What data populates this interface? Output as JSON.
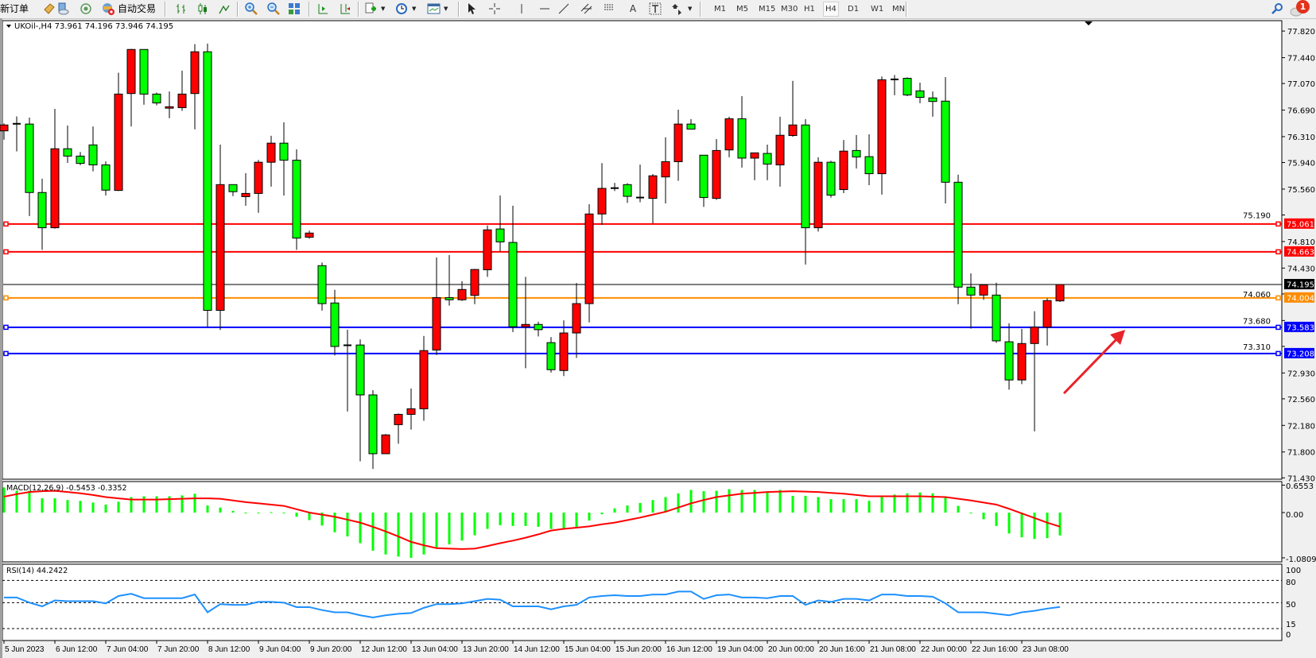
{
  "toolbar": {
    "new_order_label": "新订单",
    "auto_trading_label": "自动交易",
    "timeframes": [
      "M1",
      "M5",
      "M15",
      "M30",
      "H1",
      "H4",
      "D1",
      "W1",
      "MN"
    ],
    "active_timeframe": "H4",
    "notification_count": "1"
  },
  "chart": {
    "header": "UKOil-,H4  73.961 74.196 73.946 74.195",
    "bull_color": "#ff0000",
    "bear_color": "#00ff00",
    "price_ticks": [
      "77.820",
      "77.440",
      "77.070",
      "76.690",
      "76.310",
      "75.940",
      "75.560",
      "75.190",
      "74.810",
      "74.430",
      "74.060",
      "73.680",
      "73.310",
      "72.930",
      "72.560",
      "72.180",
      "71.800",
      "71.430"
    ],
    "bid": {
      "price": 74.195,
      "label": "74.195"
    },
    "hlines": [
      {
        "price": 75.061,
        "label": "75.061",
        "color": "#ff0000"
      },
      {
        "price": 74.663,
        "label": "74.663",
        "color": "#ff0000"
      },
      {
        "price": 74.004,
        "label": "74.004",
        "color": "#ff8c00"
      },
      {
        "price": 73.583,
        "label": "73.583",
        "color": "#0000ff"
      },
      {
        "price": 73.208,
        "label": "73.208",
        "color": "#0000ff"
      }
    ],
    "annotation_arrow_color": "#e8232a",
    "time_axis": [
      {
        "i": 0,
        "label": "5 Jun 2023"
      },
      {
        "i": 4,
        "label": "6 Jun 12:00"
      },
      {
        "i": 8,
        "label": "7 Jun 04:00"
      },
      {
        "i": 12,
        "label": "7 Jun 20:00"
      },
      {
        "i": 16,
        "label": "8 Jun 12:00"
      },
      {
        "i": 20,
        "label": "9 Jun 04:00"
      },
      {
        "i": 24,
        "label": "9 Jun 20:00"
      },
      {
        "i": 28,
        "label": "12 Jun 12:00"
      },
      {
        "i": 32,
        "label": "13 Jun 04:00"
      },
      {
        "i": 36,
        "label": "13 Jun 20:00"
      },
      {
        "i": 40,
        "label": "14 Jun 12:00"
      },
      {
        "i": 44,
        "label": "15 Jun 04:00"
      },
      {
        "i": 48,
        "label": "15 Jun 20:00"
      },
      {
        "i": 52,
        "label": "16 Jun 12:00"
      },
      {
        "i": 56,
        "label": "19 Jun 04:00"
      },
      {
        "i": 60,
        "label": "20 Jun 00:00"
      },
      {
        "i": 64,
        "label": "20 Jun 16:00"
      },
      {
        "i": 68,
        "label": "21 Jun 08:00"
      },
      {
        "i": 72,
        "label": "22 Jun 00:00"
      },
      {
        "i": 76,
        "label": "22 Jun 16:00"
      },
      {
        "i": 80,
        "label": "23 Jun 08:00"
      }
    ]
  },
  "chart_data": [
    {
      "type": "candlestick",
      "symbol": "UKOil-",
      "timeframe": "H4",
      "ylim": [
        71.43,
        77.82
      ],
      "ohlc": [
        [
          76.393,
          76.498,
          76.267,
          76.477
        ],
        [
          76.494,
          76.599,
          76.099,
          76.494
        ],
        [
          76.49,
          76.582,
          75.175,
          75.511
        ],
        [
          75.511,
          75.708,
          74.691,
          75.007
        ],
        [
          75.007,
          76.708,
          74.994,
          76.137
        ],
        [
          76.137,
          76.469,
          75.935,
          76.032
        ],
        [
          76.032,
          76.091,
          75.902,
          75.927
        ],
        [
          76.192,
          76.456,
          75.813,
          75.906
        ],
        [
          75.906,
          75.956,
          75.469,
          75.545
        ],
        [
          75.541,
          77.225,
          75.532,
          76.919
        ],
        [
          76.927,
          77.566,
          76.456,
          77.557
        ],
        [
          77.557,
          77.557,
          76.767,
          76.919
        ],
        [
          76.919,
          76.94,
          76.759,
          76.792
        ],
        [
          76.717,
          76.956,
          76.574,
          76.738
        ],
        [
          76.725,
          77.255,
          76.679,
          76.919
        ],
        [
          76.927,
          77.633,
          76.414,
          77.524
        ],
        [
          77.524,
          77.641,
          73.586,
          73.826
        ],
        [
          73.826,
          76.196,
          73.544,
          75.624
        ],
        [
          75.624,
          75.624,
          75.46,
          75.523
        ],
        [
          75.452,
          75.788,
          75.322,
          75.498
        ],
        [
          75.498,
          75.977,
          75.221,
          75.944
        ],
        [
          75.944,
          76.322,
          75.595,
          76.217
        ],
        [
          76.217,
          76.515,
          75.469,
          75.973
        ],
        [
          75.973,
          76.129,
          74.691,
          74.859
        ],
        [
          74.872,
          74.965,
          74.851,
          74.931
        ],
        [
          74.465,
          74.511,
          73.822,
          73.922
        ],
        [
          73.931,
          74.12,
          73.179,
          73.309
        ],
        [
          73.326,
          73.549,
          72.38,
          73.326
        ],
        [
          73.33,
          73.41,
          71.666,
          72.616
        ],
        [
          72.616,
          72.683,
          71.557,
          71.775
        ],
        [
          71.775,
          72.057,
          71.775,
          72.044
        ],
        [
          72.191,
          72.351,
          71.918,
          72.338
        ],
        [
          72.338,
          72.708,
          72.12,
          72.418
        ],
        [
          72.418,
          73.46,
          72.246,
          73.25
        ],
        [
          73.258,
          74.582,
          73.187,
          74.007
        ],
        [
          74.007,
          74.616,
          73.893,
          73.977
        ],
        [
          73.977,
          74.242,
          73.96,
          74.124
        ],
        [
          74.04,
          74.418,
          73.914,
          74.41
        ],
        [
          74.406,
          75.04,
          74.305,
          74.977
        ],
        [
          74.99,
          75.469,
          74.67,
          74.805
        ],
        [
          74.797,
          75.322,
          73.515,
          73.591
        ],
        [
          73.591,
          74.305,
          72.998,
          73.624
        ],
        [
          73.624,
          73.662,
          73.452,
          73.549
        ],
        [
          73.364,
          73.444,
          72.935,
          72.977
        ],
        [
          72.965,
          73.683,
          72.885,
          73.502
        ],
        [
          73.502,
          74.217,
          73.145,
          73.922
        ],
        [
          73.922,
          75.343,
          73.654,
          75.204
        ],
        [
          75.204,
          75.931,
          75.049,
          75.57
        ],
        [
          75.574,
          75.649,
          75.532,
          75.574
        ],
        [
          75.624,
          75.645,
          75.364,
          75.456
        ],
        [
          75.439,
          75.91,
          75.372,
          75.439
        ],
        [
          75.427,
          75.775,
          75.07,
          75.75
        ],
        [
          75.734,
          76.301,
          75.355,
          75.952
        ],
        [
          75.952,
          76.696,
          75.679,
          76.49
        ],
        [
          76.49,
          76.561,
          76.418,
          76.418
        ],
        [
          76.045,
          76.045,
          75.305,
          75.439
        ],
        [
          75.427,
          76.276,
          75.406,
          76.112
        ],
        [
          76.12,
          76.595,
          76.015,
          76.566
        ],
        [
          76.566,
          76.889,
          75.868,
          76.003
        ],
        [
          76.003,
          76.078,
          75.687,
          76.078
        ],
        [
          76.07,
          76.196,
          75.687,
          75.918
        ],
        [
          75.906,
          76.595,
          75.595,
          76.33
        ],
        [
          76.326,
          77.108,
          76.309,
          76.477
        ],
        [
          76.477,
          76.561,
          74.481,
          75.007
        ],
        [
          75.007,
          76.015,
          74.952,
          75.944
        ],
        [
          75.944,
          75.965,
          75.439,
          75.473
        ],
        [
          75.553,
          76.263,
          75.502,
          76.103
        ],
        [
          76.112,
          76.334,
          75.855,
          76.019
        ],
        [
          76.024,
          76.343,
          75.616,
          75.78
        ],
        [
          75.78,
          77.171,
          75.481,
          77.124
        ],
        [
          77.129,
          77.192,
          76.902,
          77.129
        ],
        [
          77.145,
          77.158,
          76.889,
          76.906
        ],
        [
          76.965,
          77.082,
          76.788,
          76.872
        ],
        [
          76.864,
          76.956,
          76.595,
          76.813
        ],
        [
          76.818,
          77.162,
          75.355,
          75.658
        ],
        [
          75.658,
          75.767,
          73.914,
          74.158
        ],
        [
          74.158,
          74.355,
          73.565,
          74.044
        ],
        [
          74.044,
          74.191,
          73.977,
          74.191
        ],
        [
          74.044,
          74.221,
          73.36,
          73.389
        ],
        [
          73.376,
          73.641,
          72.691,
          72.83
        ],
        [
          72.83,
          73.561,
          72.771,
          73.351
        ],
        [
          73.351,
          73.813,
          72.094,
          73.586
        ],
        [
          73.586,
          73.998,
          73.322,
          73.965
        ],
        [
          73.961,
          74.196,
          73.946,
          74.195
        ]
      ]
    },
    {
      "type": "bar",
      "label": "MACD(12,26,9) -0.5453 -0.3352",
      "ylim": [
        -1.0809,
        0.6553
      ],
      "ticks": [
        "0.6553",
        "0.00",
        "-1.0809"
      ],
      "histogram_color": "#00ff00",
      "signal_color": "#ff0000",
      "histogram": [
        0.6,
        0.52,
        0.52,
        0.34,
        0.34,
        0.3,
        0.28,
        0.24,
        0.19,
        0.26,
        0.37,
        0.39,
        0.39,
        0.39,
        0.41,
        0.45,
        0.17,
        0.12,
        0.04,
        -0.01,
        -0.01,
        0.01,
        -0.01,
        -0.1,
        -0.18,
        -0.31,
        -0.47,
        -0.57,
        -0.73,
        -0.91,
        -1.0,
        -1.05,
        -1.08,
        -1.0,
        -0.83,
        -0.76,
        -0.67,
        -0.54,
        -0.39,
        -0.3,
        -0.32,
        -0.32,
        -0.34,
        -0.39,
        -0.39,
        -0.35,
        -0.19,
        -0.04,
        0.1,
        0.17,
        0.23,
        0.3,
        0.37,
        0.46,
        0.54,
        0.51,
        0.52,
        0.56,
        0.54,
        0.54,
        0.49,
        0.54,
        0.4,
        0.4,
        0.37,
        0.32,
        0.32,
        0.32,
        0.28,
        0.37,
        0.43,
        0.46,
        0.48,
        0.46,
        0.37,
        0.16,
        -0.02,
        -0.16,
        -0.32,
        -0.5,
        -0.59,
        -0.63,
        -0.61,
        -0.5453
      ],
      "signal": [
        0.38,
        0.44,
        0.49,
        0.51,
        0.52,
        0.49,
        0.46,
        0.42,
        0.37,
        0.34,
        0.31,
        0.31,
        0.31,
        0.32,
        0.33,
        0.34,
        0.34,
        0.33,
        0.29,
        0.25,
        0.22,
        0.19,
        0.16,
        0.08,
        0.0,
        -0.05,
        -0.1,
        -0.17,
        -0.24,
        -0.34,
        -0.45,
        -0.57,
        -0.7,
        -0.78,
        -0.85,
        -0.86,
        -0.87,
        -0.86,
        -0.8,
        -0.73,
        -0.67,
        -0.6,
        -0.52,
        -0.43,
        -0.39,
        -0.36,
        -0.33,
        -0.28,
        -0.24,
        -0.18,
        -0.12,
        -0.05,
        0.02,
        0.12,
        0.22,
        0.3,
        0.37,
        0.41,
        0.45,
        0.47,
        0.49,
        0.5,
        0.51,
        0.5,
        0.49,
        0.47,
        0.45,
        0.42,
        0.39,
        0.39,
        0.39,
        0.39,
        0.39,
        0.38,
        0.37,
        0.33,
        0.29,
        0.24,
        0.19,
        0.09,
        -0.02,
        -0.13,
        -0.24,
        -0.3352
      ]
    },
    {
      "type": "line",
      "label": "RSI(14) 44.2422",
      "ylim": [
        0,
        100
      ],
      "ticks": [
        "100",
        "80",
        "50",
        "15",
        "0"
      ],
      "levels": [
        80,
        50,
        15
      ],
      "color": "#1e90ff",
      "values": [
        57,
        57,
        50,
        45,
        53,
        52,
        52,
        52,
        49,
        59,
        62,
        56,
        56,
        56,
        56,
        61,
        37,
        48,
        47,
        47,
        51,
        51,
        50,
        44,
        44,
        40,
        37,
        37,
        33,
        30,
        33,
        35,
        36,
        43,
        48,
        48,
        49,
        52,
        55,
        54,
        45,
        45,
        45,
        41,
        45,
        47,
        57,
        59,
        60,
        59,
        59,
        61,
        61,
        65,
        65,
        55,
        60,
        61,
        57,
        57,
        56,
        59,
        59,
        47,
        53,
        51,
        55,
        55,
        53,
        61,
        61,
        59,
        59,
        58,
        49,
        37,
        37,
        37,
        35,
        33,
        37,
        39,
        42,
        44.2422
      ]
    }
  ]
}
